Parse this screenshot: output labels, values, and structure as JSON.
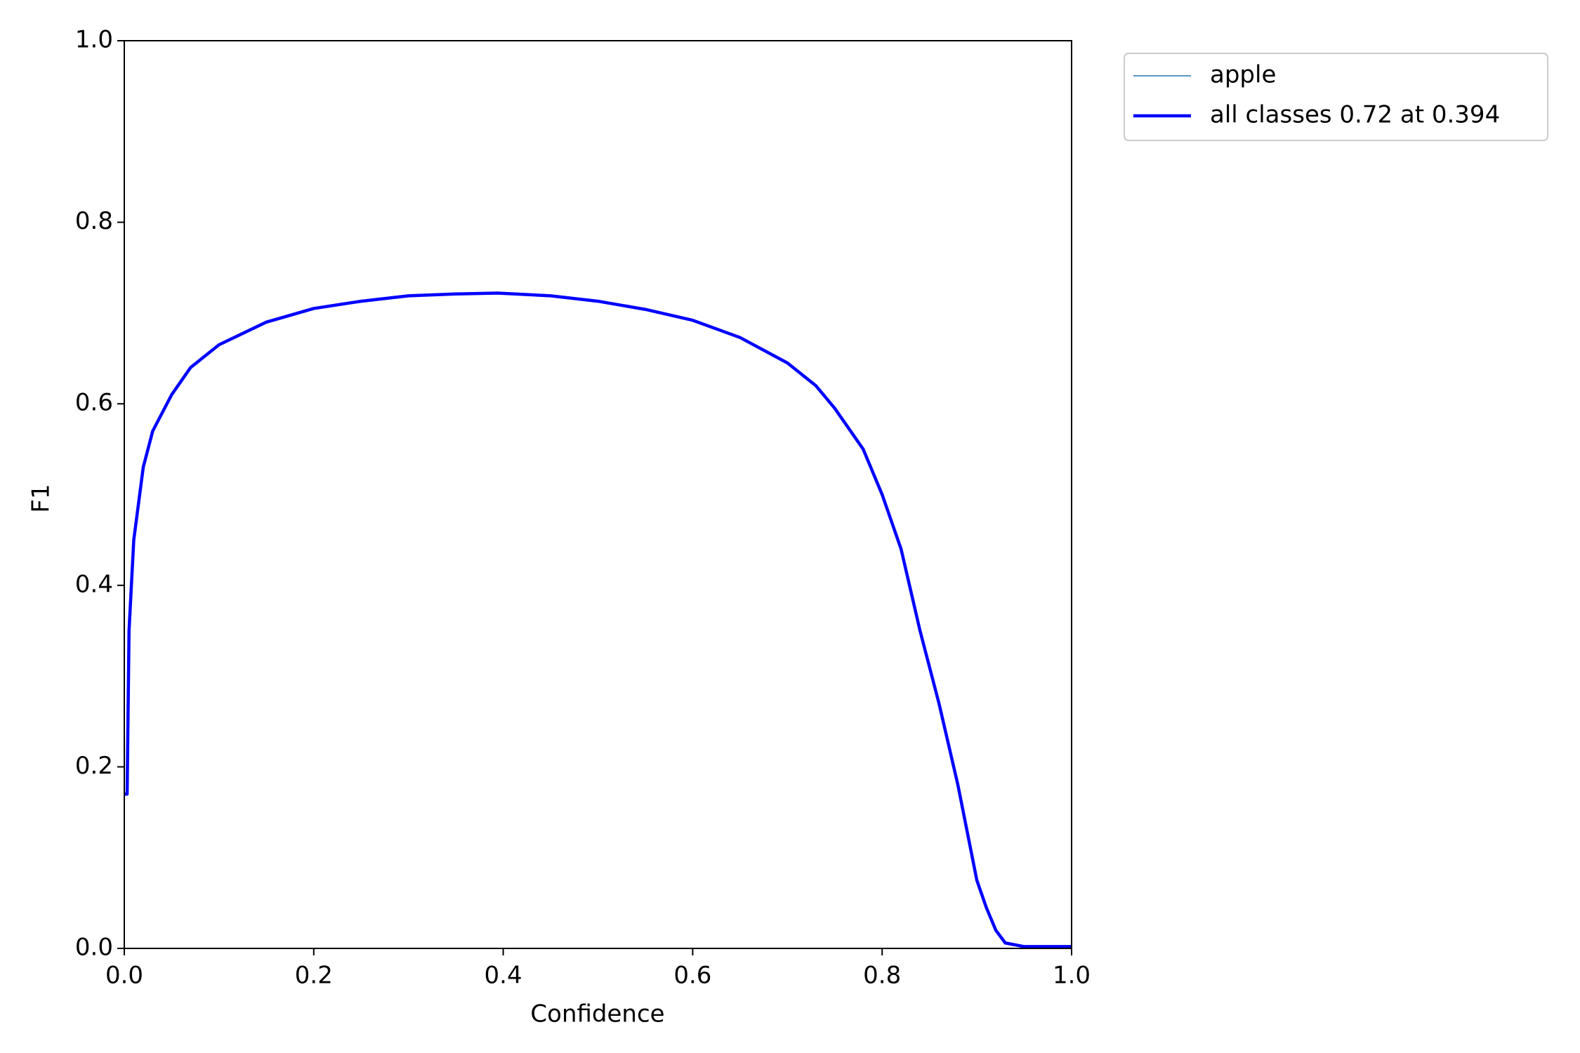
{
  "chart_data": {
    "type": "line",
    "xlabel": "Confidence",
    "ylabel": "F1",
    "x": [
      0,
      0.003,
      0.005,
      0.01,
      0.02,
      0.03,
      0.05,
      0.07,
      0.1,
      0.15,
      0.2,
      0.25,
      0.3,
      0.35,
      0.394,
      0.45,
      0.5,
      0.55,
      0.6,
      0.65,
      0.7,
      0.73,
      0.75,
      0.78,
      0.8,
      0.82,
      0.84,
      0.86,
      0.88,
      0.9,
      0.91,
      0.92,
      0.93,
      0.95,
      1.0
    ],
    "series": [
      {
        "name": "apple",
        "color": "#1f77b4",
        "width": 1.5,
        "values": [
          0.17,
          0.17,
          0.35,
          0.45,
          0.53,
          0.57,
          0.61,
          0.64,
          0.665,
          0.69,
          0.705,
          0.713,
          0.719,
          0.721,
          0.722,
          0.719,
          0.713,
          0.704,
          0.692,
          0.673,
          0.645,
          0.62,
          0.595,
          0.55,
          0.5,
          0.44,
          0.35,
          0.27,
          0.18,
          0.075,
          0.045,
          0.02,
          0.006,
          0.002,
          0.002
        ]
      },
      {
        "name": "all classes 0.72 at 0.394",
        "color": "#0000ff",
        "width": 4.5,
        "values": [
          0.17,
          0.17,
          0.35,
          0.45,
          0.53,
          0.57,
          0.61,
          0.64,
          0.665,
          0.69,
          0.705,
          0.713,
          0.719,
          0.721,
          0.722,
          0.719,
          0.713,
          0.704,
          0.692,
          0.673,
          0.645,
          0.62,
          0.595,
          0.55,
          0.5,
          0.44,
          0.35,
          0.27,
          0.18,
          0.075,
          0.045,
          0.02,
          0.006,
          0.002,
          0.002
        ]
      }
    ],
    "xlim": [
      0,
      1
    ],
    "ylim": [
      0,
      1
    ],
    "xticks": [
      {
        "value": 0,
        "label": "0.0"
      },
      0.2,
      0.4,
      0.6,
      0.8,
      {
        "value": 1,
        "label": "1.0"
      }
    ],
    "yticks": [
      {
        "value": 0,
        "label": "0.0"
      },
      0.2,
      0.4,
      0.6,
      0.8,
      {
        "value": 1,
        "label": "1.0"
      }
    ],
    "legend": "outside-upper-right"
  }
}
